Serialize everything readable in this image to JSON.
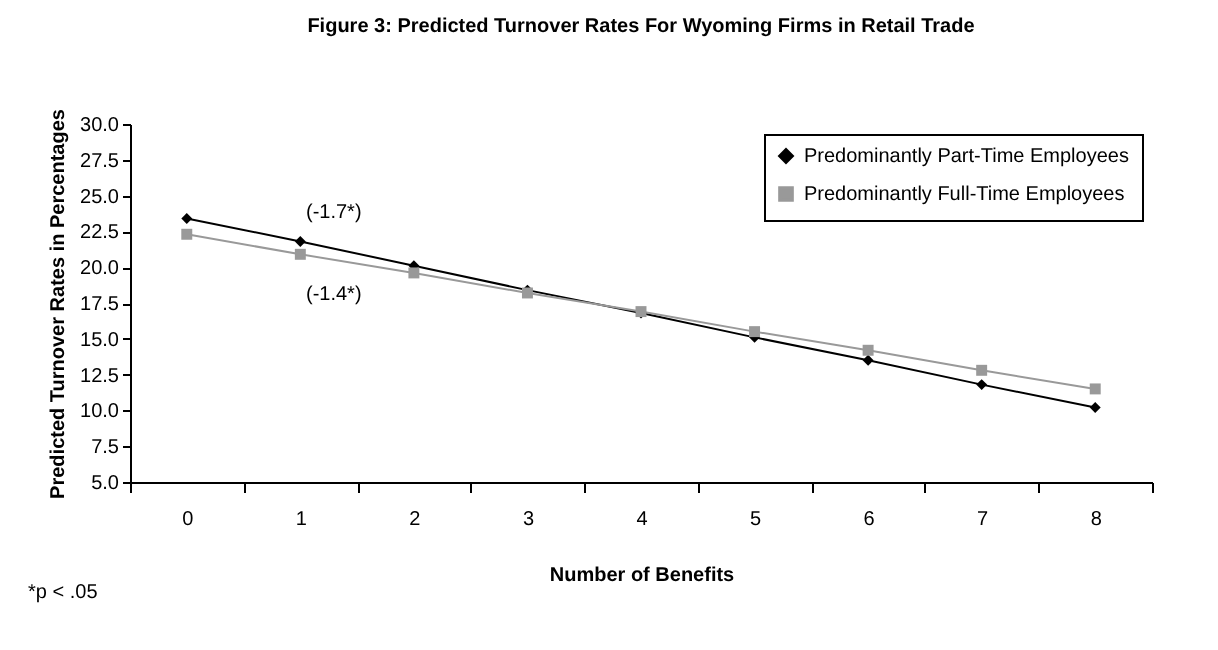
{
  "chart_data": {
    "type": "line",
    "title": "Figure 3: Predicted Turnover Rates For Wyoming Firms in Retail Trade",
    "xlabel": "Number of Benefits",
    "ylabel": "Predicted Turnover Rates in Percentages",
    "categories": [
      "0",
      "1",
      "2",
      "3",
      "4",
      "5",
      "6",
      "7",
      "8"
    ],
    "series": [
      {
        "name": "Predominantly Part-Time Employees",
        "color": "#000000",
        "marker": "diamond",
        "values": [
          23.4,
          21.8,
          20.1,
          18.4,
          16.8,
          15.1,
          13.5,
          11.8,
          10.2
        ]
      },
      {
        "name": "Predominantly Full-Time Employees",
        "color": "#999999",
        "marker": "square",
        "values": [
          22.3,
          20.9,
          19.6,
          18.2,
          16.9,
          15.5,
          14.2,
          12.8,
          11.5
        ]
      }
    ],
    "ylim": [
      5,
      30
    ],
    "yticks": [
      {
        "value": 5,
        "label": "5.0"
      },
      {
        "value": 7.5,
        "label": "7.5"
      },
      {
        "value": 10,
        "label": "10.0"
      },
      {
        "value": 12.5,
        "label": "12.5"
      },
      {
        "value": 15,
        "label": "15.0"
      },
      {
        "value": 17.5,
        "label": "17.5"
      },
      {
        "value": 20,
        "label": "20.0"
      },
      {
        "value": 22.5,
        "label": "22.5"
      },
      {
        "value": 25,
        "label": "25.0"
      },
      {
        "value": 27.5,
        "label": "27.5"
      },
      {
        "value": 30,
        "label": "30.0"
      }
    ],
    "grid": false,
    "legend": "top right",
    "line_style": "solid",
    "annotations": [
      "(-1.7*)",
      "(-1.4*)",
      "*p < .05"
    ]
  }
}
